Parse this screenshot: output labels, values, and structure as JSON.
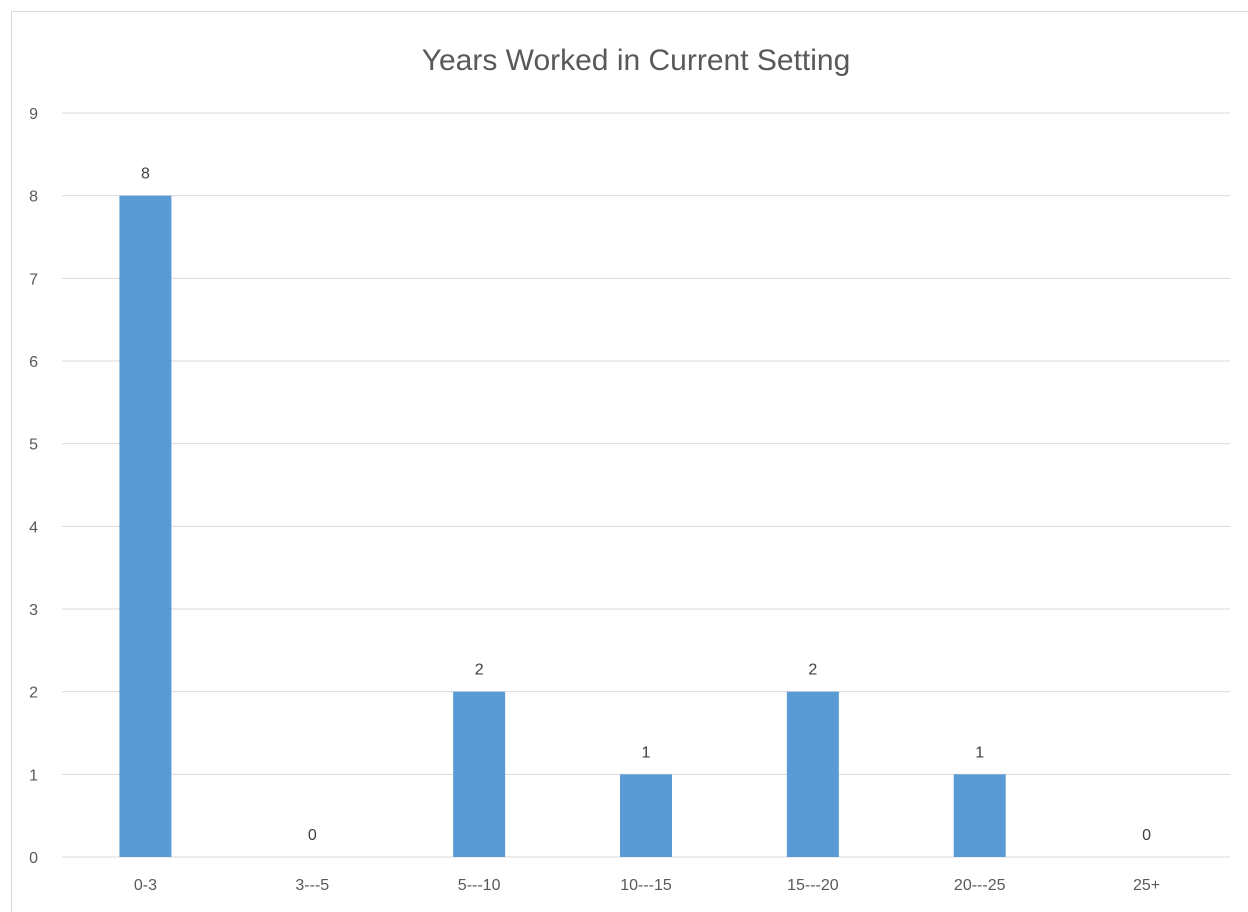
{
  "chart_data": {
    "type": "bar",
    "title": "Years Worked in Current Setting",
    "categories": [
      "0-3",
      "3---5",
      "5---10",
      "10---15",
      "15---20",
      "20---25",
      "25+"
    ],
    "values": [
      8,
      0,
      2,
      1,
      2,
      1,
      0
    ],
    "ylim": [
      0,
      9
    ],
    "ytick_step": 1,
    "grid": true,
    "legend": "none",
    "data_labels": true,
    "colors": {
      "bar": "#5b9bd5",
      "grid": "#d9d9d9",
      "text": "#595959"
    }
  }
}
